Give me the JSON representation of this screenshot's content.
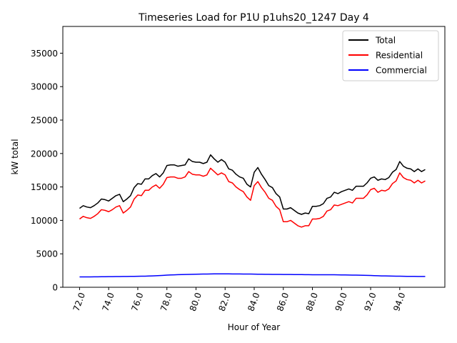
{
  "chart_data": {
    "type": "line",
    "title": "Timeseries Load for P1U p1uhs20_1247  Day 4",
    "xlabel": "Hour of Year",
    "ylabel": "kW total",
    "xlim": [
      70.85,
      97.1
    ],
    "ylim": [
      0,
      39000
    ],
    "xticks": [
      72,
      74,
      76,
      78,
      80,
      82,
      84,
      86,
      88,
      90,
      92,
      94
    ],
    "xtick_labels": [
      "72.0",
      "74.0",
      "76.0",
      "78.0",
      "80.0",
      "82.0",
      "84.0",
      "86.0",
      "88.0",
      "90.0",
      "92.0",
      "94.0"
    ],
    "yticks": [
      0,
      5000,
      10000,
      15000,
      20000,
      25000,
      30000,
      35000
    ],
    "ytick_labels": [
      "0",
      "5000",
      "10000",
      "15000",
      "20000",
      "25000",
      "30000",
      "35000"
    ],
    "legend_position": "top-right",
    "x_start": 72.0,
    "x_step": 0.25,
    "series": [
      {
        "name": "Total",
        "color": "#000000",
        "values": [
          11800,
          12200,
          12000,
          11900,
          12200,
          12600,
          13200,
          13100,
          12900,
          13300,
          13700,
          13900,
          12800,
          13200,
          13700,
          14900,
          15500,
          15400,
          16200,
          16200,
          16700,
          17000,
          16500,
          17100,
          18200,
          18300,
          18300,
          18100,
          18200,
          18300,
          19200,
          18800,
          18700,
          18700,
          18500,
          18700,
          19800,
          19200,
          18700,
          19100,
          18700,
          17700,
          17500,
          16900,
          16500,
          16300,
          15400,
          15000,
          17200,
          17900,
          16900,
          16100,
          15200,
          14900,
          14000,
          13500,
          11700,
          11700,
          11900,
          11500,
          11100,
          10900,
          11100,
          11000,
          12100,
          12100,
          12200,
          12500,
          13300,
          13500,
          14200,
          14000,
          14300,
          14500,
          14700,
          14500,
          15100,
          15100,
          15100,
          15600,
          16300,
          16500,
          16000,
          16200,
          16100,
          16400,
          17200,
          17600,
          18800,
          18100,
          17800,
          17700,
          17300,
          17700,
          17300,
          17600
        ]
      },
      {
        "name": "Residential",
        "color": "#ff0000",
        "values": [
          10200,
          10600,
          10400,
          10300,
          10600,
          11000,
          11600,
          11500,
          11300,
          11600,
          12000,
          12200,
          11100,
          11500,
          12000,
          13200,
          13800,
          13700,
          14500,
          14500,
          15000,
          15300,
          14800,
          15400,
          16400,
          16500,
          16500,
          16300,
          16300,
          16500,
          17300,
          16900,
          16800,
          16800,
          16600,
          16800,
          17800,
          17300,
          16800,
          17100,
          16800,
          15800,
          15600,
          15000,
          14600,
          14300,
          13500,
          13000,
          15200,
          15800,
          14900,
          14200,
          13300,
          13000,
          12100,
          11600,
          9800,
          9800,
          10000,
          9600,
          9200,
          9000,
          9200,
          9200,
          10200,
          10200,
          10300,
          10600,
          11400,
          11600,
          12300,
          12200,
          12400,
          12600,
          12800,
          12600,
          13300,
          13300,
          13300,
          13800,
          14600,
          14800,
          14200,
          14500,
          14400,
          14700,
          15500,
          15900,
          17100,
          16400,
          16100,
          16000,
          15600,
          16000,
          15600,
          15900
        ]
      },
      {
        "name": "Commercial",
        "color": "#0000ff",
        "values": [
          1550,
          1550,
          1550,
          1555,
          1560,
          1565,
          1570,
          1580,
          1585,
          1590,
          1600,
          1605,
          1610,
          1620,
          1625,
          1630,
          1640,
          1650,
          1660,
          1680,
          1700,
          1720,
          1750,
          1780,
          1810,
          1840,
          1860,
          1880,
          1900,
          1910,
          1930,
          1940,
          1950,
          1960,
          1970,
          1980,
          1990,
          2000,
          2000,
          2000,
          2000,
          2000,
          1995,
          1990,
          1985,
          1980,
          1975,
          1970,
          1960,
          1950,
          1945,
          1940,
          1935,
          1930,
          1925,
          1920,
          1915,
          1910,
          1905,
          1900,
          1895,
          1890,
          1885,
          1880,
          1875,
          1870,
          1870,
          1870,
          1870,
          1870,
          1865,
          1860,
          1850,
          1840,
          1830,
          1820,
          1810,
          1800,
          1790,
          1780,
          1760,
          1740,
          1720,
          1700,
          1690,
          1680,
          1670,
          1660,
          1650,
          1640,
          1635,
          1630,
          1625,
          1620,
          1615,
          1610
        ]
      }
    ]
  }
}
